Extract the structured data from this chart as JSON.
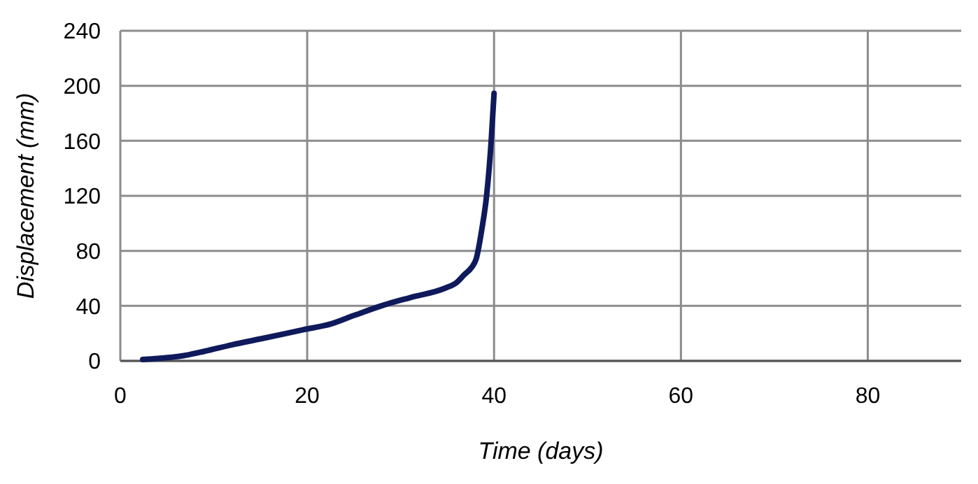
{
  "chart_data": {
    "type": "line",
    "xlabel": "Time (days)",
    "ylabel": "Displacement (mm)",
    "xlim": [
      0,
      90
    ],
    "xticks": [
      0,
      20,
      40,
      60,
      80
    ],
    "ylim": [
      0,
      240
    ],
    "yticks": [
      0,
      40,
      80,
      120,
      160,
      200,
      240
    ],
    "grid": true,
    "marker": "none",
    "line_style": "solid",
    "series": [
      {
        "color": "#0f1a5c",
        "x": [
          2.4,
          4,
          6.4,
          9,
          12,
          15,
          19.6,
          22.6,
          25,
          28.2,
          31,
          34.8,
          36,
          36.8,
          37.6,
          38.1,
          38.7,
          39.2,
          39.7,
          40
        ],
        "values": [
          1,
          1.8,
          3.4,
          7,
          11.8,
          16,
          22.7,
          27,
          33,
          40.6,
          46,
          53,
          57,
          62.6,
          68,
          74.4,
          96,
          120,
          160.6,
          194.5
        ]
      }
    ]
  }
}
